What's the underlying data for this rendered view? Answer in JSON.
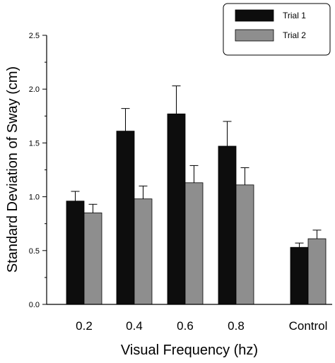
{
  "chart_data": {
    "type": "bar",
    "title": "",
    "xlabel": "Visual Frequency (hz)",
    "ylabel": "Standard Deviation of Sway (cm)",
    "ylim": [
      0,
      2.5
    ],
    "yticks": [
      "0.0",
      "0.5",
      "1.0",
      "1.5",
      "2.0",
      "2.5"
    ],
    "grid": false,
    "legend_position": "top-right",
    "categories": [
      "0.2",
      "0.4",
      "0.6",
      "0.8",
      "Control"
    ],
    "series": [
      {
        "name": "Trial 1",
        "color": "#0d0d0d",
        "values": [
          0.96,
          1.61,
          1.77,
          1.47,
          0.53
        ],
        "errors": [
          0.09,
          0.21,
          0.26,
          0.23,
          0.04
        ]
      },
      {
        "name": "Trial 2",
        "color": "#8e8e8e",
        "values": [
          0.85,
          0.98,
          1.13,
          1.11,
          0.61
        ],
        "errors": [
          0.08,
          0.12,
          0.16,
          0.16,
          0.08
        ]
      }
    ]
  }
}
